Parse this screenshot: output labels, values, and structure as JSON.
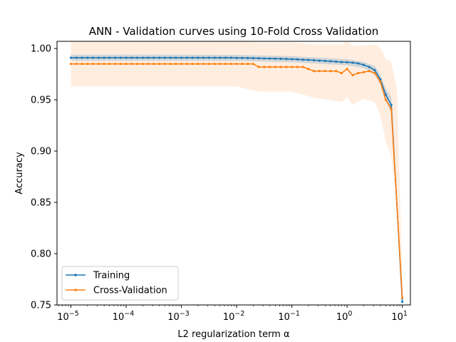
{
  "chart_data": {
    "type": "line",
    "title": "ANN - Validation curves using 10-Fold Cross Validation",
    "xlabel": "L2 regularization term α",
    "ylabel": "Accuracy",
    "x_scale": "log",
    "xlim": [
      5.6e-06,
      14
    ],
    "ylim": [
      0.75,
      1.007
    ],
    "x_ticks": [
      {
        "value": 1e-05,
        "base": "10",
        "exp": "−5"
      },
      {
        "value": 0.0001,
        "base": "10",
        "exp": "−4"
      },
      {
        "value": 0.001,
        "base": "10",
        "exp": "−3"
      },
      {
        "value": 0.01,
        "base": "10",
        "exp": "−2"
      },
      {
        "value": 0.1,
        "base": "10",
        "exp": "−1"
      },
      {
        "value": 1,
        "base": "10",
        "exp": "0"
      },
      {
        "value": 10,
        "base": "10",
        "exp": "1"
      }
    ],
    "y_ticks": [
      {
        "value": 0.75,
        "label": "0.75"
      },
      {
        "value": 0.8,
        "label": "0.80"
      },
      {
        "value": 0.85,
        "label": "0.85"
      },
      {
        "value": 0.9,
        "label": "0.90"
      },
      {
        "value": 0.95,
        "label": "0.95"
      },
      {
        "value": 1.0,
        "label": "1.00"
      }
    ],
    "grid": false,
    "legend_position": "lower-left",
    "series": [
      {
        "name": "Training",
        "color": "#1f77b4",
        "band_color": "#1f77b4",
        "points": [
          [
            1e-05,
            0.991
          ],
          [
            1.26e-05,
            0.991
          ],
          [
            1.59e-05,
            0.991
          ],
          [
            2e-05,
            0.991
          ],
          [
            2.51e-05,
            0.991
          ],
          [
            3.16e-05,
            0.991
          ],
          [
            3.98e-05,
            0.991
          ],
          [
            5.01e-05,
            0.991
          ],
          [
            6.31e-05,
            0.991
          ],
          [
            7.94e-05,
            0.991
          ],
          [
            0.0001,
            0.991
          ],
          [
            0.000126,
            0.991
          ],
          [
            0.000159,
            0.991
          ],
          [
            0.0002,
            0.991
          ],
          [
            0.000251,
            0.991
          ],
          [
            0.000316,
            0.991
          ],
          [
            0.000398,
            0.991
          ],
          [
            0.000501,
            0.991
          ],
          [
            0.000631,
            0.991
          ],
          [
            0.000794,
            0.991
          ],
          [
            0.001,
            0.991
          ],
          [
            0.00126,
            0.991
          ],
          [
            0.00159,
            0.991
          ],
          [
            0.002,
            0.991
          ],
          [
            0.00251,
            0.991
          ],
          [
            0.00316,
            0.991
          ],
          [
            0.00398,
            0.991
          ],
          [
            0.00501,
            0.991
          ],
          [
            0.00631,
            0.991
          ],
          [
            0.00794,
            0.991
          ],
          [
            0.01,
            0.9908
          ],
          [
            0.0126,
            0.9908
          ],
          [
            0.0159,
            0.9907
          ],
          [
            0.02,
            0.9906
          ],
          [
            0.0251,
            0.9905
          ],
          [
            0.0316,
            0.9903
          ],
          [
            0.0398,
            0.9902
          ],
          [
            0.0501,
            0.9901
          ],
          [
            0.0631,
            0.99
          ],
          [
            0.0794,
            0.9898
          ],
          [
            0.1,
            0.9896
          ],
          [
            0.126,
            0.9894
          ],
          [
            0.159,
            0.9891
          ],
          [
            0.2,
            0.9889
          ],
          [
            0.251,
            0.9886
          ],
          [
            0.316,
            0.9882
          ],
          [
            0.398,
            0.9879
          ],
          [
            0.501,
            0.9876
          ],
          [
            0.631,
            0.9872
          ],
          [
            0.794,
            0.9868
          ],
          [
            1.0,
            0.9866
          ],
          [
            1.26,
            0.9862
          ],
          [
            1.59,
            0.9855
          ],
          [
            2.0,
            0.984
          ],
          [
            2.51,
            0.982
          ],
          [
            3.16,
            0.979
          ],
          [
            3.98,
            0.97
          ],
          [
            5.01,
            0.955
          ],
          [
            6.31,
            0.945
          ],
          [
            10.0,
            0.753
          ]
        ],
        "band": [
          [
            1e-05,
            0.988,
            0.994
          ],
          [
            0.0001,
            0.988,
            0.994
          ],
          [
            0.001,
            0.988,
            0.994
          ],
          [
            0.01,
            0.9878,
            0.9938
          ],
          [
            0.1,
            0.9866,
            0.9926
          ],
          [
            1.0,
            0.9836,
            0.9896
          ],
          [
            2.0,
            0.981,
            0.987
          ],
          [
            3.16,
            0.975,
            0.983
          ],
          [
            3.98,
            0.965,
            0.975
          ],
          [
            5.01,
            0.949,
            0.961
          ],
          [
            6.31,
            0.937,
            0.953
          ],
          [
            10.0,
            0.749,
            0.757
          ]
        ]
      },
      {
        "name": "Cross-Validation",
        "color": "#ff7f0e",
        "band_color": "#ff7f0e",
        "points": [
          [
            1e-05,
            0.985
          ],
          [
            1.26e-05,
            0.985
          ],
          [
            1.59e-05,
            0.985
          ],
          [
            2e-05,
            0.985
          ],
          [
            2.51e-05,
            0.985
          ],
          [
            3.16e-05,
            0.985
          ],
          [
            3.98e-05,
            0.985
          ],
          [
            5.01e-05,
            0.985
          ],
          [
            6.31e-05,
            0.985
          ],
          [
            7.94e-05,
            0.985
          ],
          [
            0.0001,
            0.985
          ],
          [
            0.000126,
            0.985
          ],
          [
            0.000159,
            0.985
          ],
          [
            0.0002,
            0.985
          ],
          [
            0.000251,
            0.985
          ],
          [
            0.000316,
            0.985
          ],
          [
            0.000398,
            0.985
          ],
          [
            0.000501,
            0.985
          ],
          [
            0.000631,
            0.985
          ],
          [
            0.000794,
            0.985
          ],
          [
            0.001,
            0.985
          ],
          [
            0.00126,
            0.985
          ],
          [
            0.00159,
            0.985
          ],
          [
            0.002,
            0.985
          ],
          [
            0.00251,
            0.985
          ],
          [
            0.00316,
            0.985
          ],
          [
            0.00398,
            0.985
          ],
          [
            0.00501,
            0.985
          ],
          [
            0.00631,
            0.985
          ],
          [
            0.00794,
            0.985
          ],
          [
            0.01,
            0.985
          ],
          [
            0.0126,
            0.985
          ],
          [
            0.0159,
            0.985
          ],
          [
            0.02,
            0.985
          ],
          [
            0.0251,
            0.982
          ],
          [
            0.0316,
            0.982
          ],
          [
            0.0398,
            0.982
          ],
          [
            0.0501,
            0.982
          ],
          [
            0.0631,
            0.982
          ],
          [
            0.0794,
            0.982
          ],
          [
            0.1,
            0.982
          ],
          [
            0.126,
            0.982
          ],
          [
            0.159,
            0.982
          ],
          [
            0.2,
            0.98
          ],
          [
            0.251,
            0.978
          ],
          [
            0.316,
            0.978
          ],
          [
            0.398,
            0.978
          ],
          [
            0.501,
            0.978
          ],
          [
            0.631,
            0.978
          ],
          [
            0.794,
            0.976
          ],
          [
            1.0,
            0.98
          ],
          [
            1.26,
            0.974
          ],
          [
            1.59,
            0.976
          ],
          [
            2.0,
            0.977
          ],
          [
            2.51,
            0.978
          ],
          [
            3.16,
            0.976
          ],
          [
            3.98,
            0.968
          ],
          [
            5.01,
            0.95
          ],
          [
            6.31,
            0.941
          ],
          [
            10.0,
            0.757
          ]
        ],
        "band": [
          [
            1e-05,
            0.963,
            1.007
          ],
          [
            0.0001,
            0.963,
            1.007
          ],
          [
            0.001,
            0.963,
            1.007
          ],
          [
            0.01,
            0.963,
            1.007
          ],
          [
            0.0251,
            0.958,
            1.006
          ],
          [
            0.1,
            0.958,
            1.006
          ],
          [
            0.251,
            0.952,
            1.004
          ],
          [
            0.794,
            0.948,
            1.004
          ],
          [
            1.0,
            0.952,
            1.008
          ],
          [
            1.26,
            0.945,
            1.003
          ],
          [
            2.0,
            0.951,
            1.003
          ],
          [
            3.16,
            0.948,
            1.004
          ],
          [
            3.98,
            0.935,
            1.001
          ],
          [
            5.01,
            0.91,
            0.99
          ],
          [
            6.31,
            0.895,
            0.987
          ],
          [
            8.0,
            0.85,
            0.96
          ],
          [
            10.0,
            0.735,
            0.779
          ]
        ]
      }
    ]
  }
}
